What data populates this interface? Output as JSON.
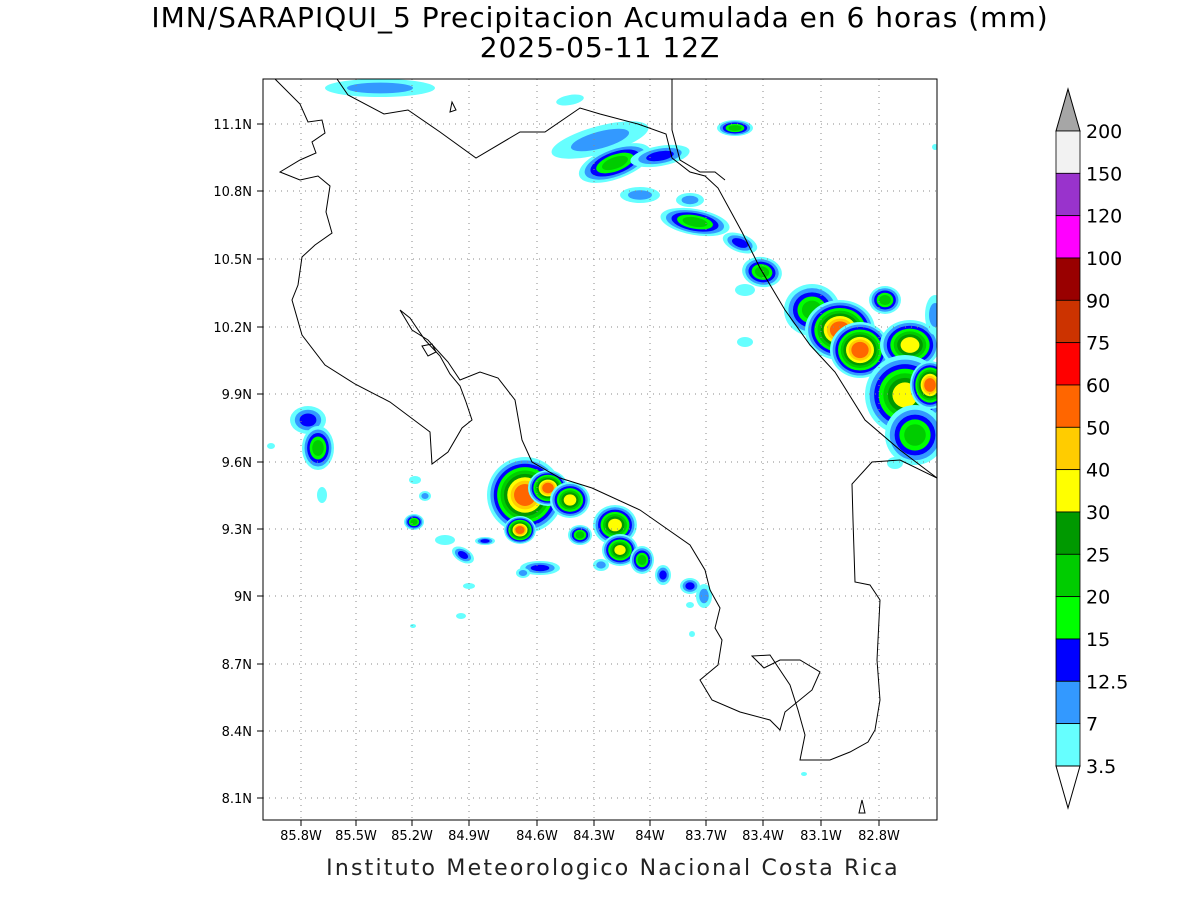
{
  "title": {
    "line1": "IMN/SARAPIQUI_5 Precipitacion Acumulada en 6 horas (mm)",
    "line2": "2025-05-11 12Z"
  },
  "footer": "Instituto Meteorologico Nacional Costa Rica",
  "map": {
    "lon_labels": [
      "85.8W",
      "85.5W",
      "85.2W",
      "84.9W",
      "84.6W",
      "84.3W",
      "84W",
      "83.7W",
      "83.4W",
      "83.1W",
      "82.8W"
    ],
    "lat_labels": [
      "11.1N",
      "10.8N",
      "10.5N",
      "10.2N",
      "9.9N",
      "9.6N",
      "9.3N",
      "9N",
      "8.7N",
      "8.4N",
      "8.1N"
    ],
    "grid": "dotted"
  },
  "colorbar": {
    "labels": [
      "200",
      "150",
      "120",
      "100",
      "90",
      "75",
      "60",
      "50",
      "40",
      "30",
      "25",
      "20",
      "15",
      "12.5",
      "7",
      "3.5"
    ],
    "colors": [
      "#a6a6a6",
      "#f2f2f2",
      "#9933cc",
      "#ff00ff",
      "#990000",
      "#cc3300",
      "#ff0000",
      "#ff6600",
      "#ffcc00",
      "#ffff00",
      "#009900",
      "#00cc00",
      "#00ff00",
      "#0000ff",
      "#3399ff",
      "#66ffff",
      "#ffffff"
    ]
  },
  "precip_colors": {
    "c35": "#66ffff",
    "c7": "#3399ff",
    "c125": "#0000ff",
    "c15": "#00ff00",
    "c20": "#00cc00",
    "c25": "#009900",
    "c30": "#ffff00",
    "c40": "#ffcc00",
    "c50": "#ff6600",
    "c60": "#ff0000"
  }
}
